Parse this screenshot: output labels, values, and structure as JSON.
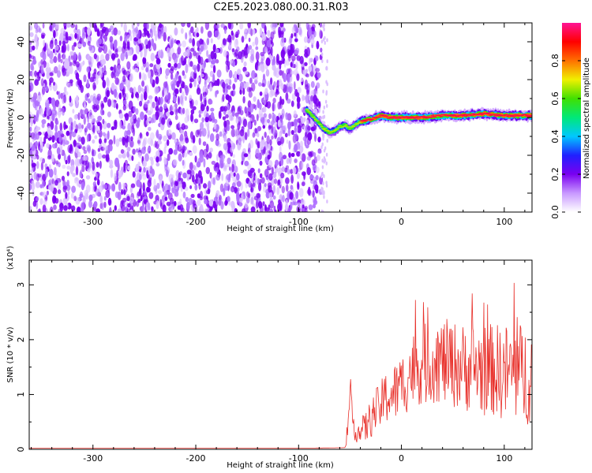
{
  "title": "C2E5.2023.080.00.31.R03",
  "colors": {
    "spectrogram_noise": "#7a00f0",
    "snr_line": "#e8302a",
    "frame": "#000000"
  },
  "chart_data": [
    {
      "type": "heatmap",
      "xlabel": "Height of straight line (km)",
      "ylabel": "Frequency (Hz)",
      "xlim": [
        -362,
        127
      ],
      "ylim": [
        -50,
        50
      ],
      "xticks": [
        -300,
        -200,
        -100,
        0,
        100
      ],
      "yticks": [
        -40,
        -20,
        0,
        20,
        40
      ],
      "xtick_labels": [
        "-300",
        "-200",
        "-100",
        "0",
        "100"
      ],
      "ytick_labels": [
        "-40",
        "-20",
        "0",
        "20",
        "40"
      ],
      "noise_region": {
        "x": [
          -362,
          -78
        ],
        "y": [
          -50,
          50
        ],
        "level": 0.12
      },
      "signal_track": {
        "x": [
          -92,
          -85,
          -80,
          -75,
          -70,
          -65,
          -60,
          -55,
          -50,
          -45,
          -40,
          -30,
          -20,
          -10,
          0,
          20,
          40,
          60,
          80,
          100,
          127
        ],
        "frequency": [
          4,
          0,
          -3,
          -6,
          -8,
          -7,
          -5,
          -4,
          -6,
          -4,
          -2,
          -1,
          1,
          0,
          0,
          0,
          1,
          1,
          2,
          1,
          1
        ],
        "peak_amplitude": 0.95
      },
      "colorbar": {
        "label": "Normalized spectral amplitude",
        "range": [
          0,
          1
        ],
        "ticks": [
          0.0,
          0.2,
          0.4,
          0.6,
          0.8
        ],
        "tick_labels": [
          "0.0",
          "0.2",
          "0.4",
          "0.6",
          "0.8"
        ],
        "stops": [
          "#ffffff",
          "#c898ff",
          "#7a00f0",
          "#2020ff",
          "#00c8ff",
          "#00e878",
          "#40e000",
          "#f0f000",
          "#ff7000",
          "#ff0000",
          "#ff1493"
        ]
      }
    },
    {
      "type": "line",
      "xlabel": "Height of straight line (km)",
      "ylabel": "SNR (10 * v/v)",
      "yscale_label": "(x10⁴)",
      "xlim": [
        -362,
        127
      ],
      "ylim": [
        0,
        3.45
      ],
      "xticks": [
        -300,
        -200,
        -100,
        0,
        100
      ],
      "yticks": [
        0,
        1,
        2,
        3
      ],
      "xtick_labels": [
        "-300",
        "-200",
        "-100",
        "0",
        "100"
      ],
      "ytick_labels": [
        "0",
        "1",
        "2",
        "3"
      ],
      "series": [
        {
          "x": [
            -362,
            -100,
            -55,
            -52,
            -50,
            -48,
            -45,
            -40,
            -35,
            -30,
            -25,
            -20,
            -15,
            -10,
            -5,
            0,
            5,
            10,
            15,
            20,
            25,
            30,
            40,
            50,
            60,
            70,
            80,
            90,
            100,
            110,
            120,
            127
          ],
          "values": [
            0.02,
            0.02,
            0.03,
            0.3,
            1.0,
            0.6,
            0.35,
            0.3,
            0.4,
            0.55,
            0.7,
            0.8,
            0.95,
            1.0,
            1.05,
            1.15,
            1.3,
            1.45,
            1.5,
            1.55,
            1.55,
            1.6,
            1.6,
            1.55,
            1.5,
            1.5,
            1.45,
            1.45,
            1.4,
            1.4,
            1.35,
            1.4
          ],
          "spread": [
            0.0,
            0.0,
            0.0,
            0.15,
            0.25,
            0.25,
            0.2,
            0.25,
            0.3,
            0.35,
            0.4,
            0.45,
            0.5,
            0.55,
            0.55,
            0.6,
            0.65,
            0.7,
            0.7,
            0.75,
            0.75,
            0.75,
            0.8,
            0.8,
            0.8,
            0.85,
            0.85,
            0.85,
            0.9,
            0.95,
            0.95,
            0.9
          ]
        }
      ]
    }
  ]
}
